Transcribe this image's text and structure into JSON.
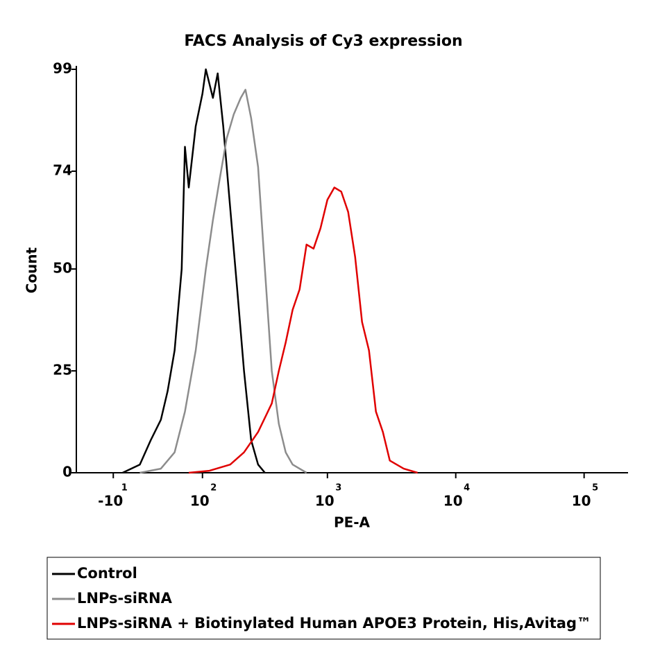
{
  "chart_data": {
    "type": "line",
    "title": "FACS Analysis of Cy3 expression",
    "x_label": "PE-A",
    "y_label": "Count",
    "xscale": "biexponential",
    "xlim": [
      -50,
      220000
    ],
    "xticks": [
      {
        "value": -10,
        "label": "-10",
        "exponent": "1"
      },
      {
        "value": 100,
        "label": "10",
        "exponent": "2"
      },
      {
        "value": 1000,
        "label": "10",
        "exponent": "3"
      },
      {
        "value": 10000,
        "label": "10",
        "exponent": "4"
      },
      {
        "value": 100000,
        "label": "10",
        "exponent": "5"
      }
    ],
    "ylim": [
      0,
      99
    ],
    "yticks": [
      0,
      25,
      50,
      74,
      99
    ],
    "grid": false,
    "legend": "bottom",
    "series": [
      {
        "name": "Control",
        "color": "#000000",
        "x": [
          -1.2,
          15,
          26,
          37,
          45,
          54,
          64,
          69,
          75,
          87,
          100,
          107,
          123,
          135,
          150,
          171,
          195,
          221,
          252,
          286,
          324
        ],
        "values": [
          0,
          2,
          8,
          13,
          20,
          30,
          50,
          80,
          70,
          85,
          93,
          99,
          92,
          98,
          85,
          65,
          45,
          25,
          8,
          2,
          0
        ]
      },
      {
        "name": "LNPs-siRNA",
        "color": "#8c8c8c",
        "x": [
          15,
          37,
          54,
          69,
          87,
          107,
          123,
          140,
          160,
          183,
          208,
          227,
          252,
          286,
          324,
          367,
          417,
          472,
          535,
          687
        ],
        "values": [
          0,
          1,
          5,
          15,
          30,
          50,
          62,
          72,
          82,
          88,
          92,
          94,
          87,
          75,
          50,
          25,
          12,
          5,
          2,
          0
        ]
      },
      {
        "name": "LNPs-siRNA + Biotinylated Human APOE3 Protein, His,Avitag™",
        "color": "#e00000",
        "x": [
          75,
          115,
          171,
          221,
          286,
          367,
          417,
          472,
          535,
          606,
          687,
          779,
          883,
          1000,
          1132,
          1282,
          1452,
          1644,
          1862,
          2109,
          2389,
          2705,
          3063,
          3930,
          5040
        ],
        "values": [
          0,
          0.5,
          2,
          5,
          10,
          17,
          25,
          32,
          40,
          45,
          56,
          55,
          60,
          67,
          70,
          69,
          64,
          53,
          37,
          30,
          15,
          10,
          3,
          1,
          0
        ]
      }
    ]
  }
}
